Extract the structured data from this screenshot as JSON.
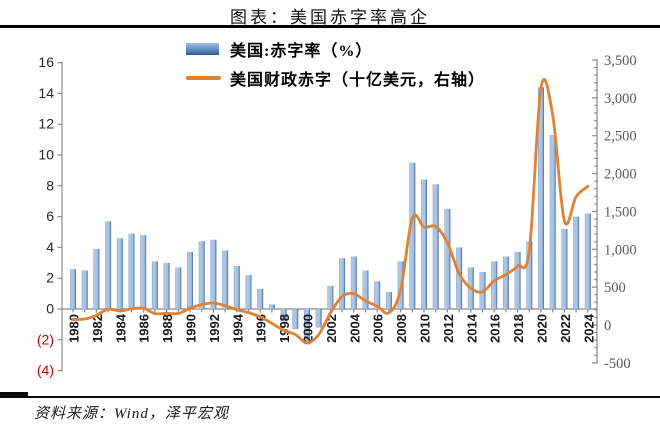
{
  "title": "图表：美国赤字率高企",
  "source": "资料来源：Wind，泽平宏观",
  "legend": {
    "bars": "美国:赤字率（%）",
    "line": "美国财政赤字（十亿美元，右轴）"
  },
  "colors": {
    "bar_edge_dark": "#3f689f",
    "bar_light": "#b2c8e4",
    "bar_mid": "#7d9fc7",
    "line": "#df8136",
    "negative_label": "#c00000",
    "axis": "#898989",
    "left_label": "#262626",
    "x_label": "#1a1a1a",
    "right_label": "#595959"
  },
  "chart_data": {
    "type": "bar",
    "x": [
      1980,
      1981,
      1982,
      1983,
      1984,
      1985,
      1986,
      1987,
      1988,
      1989,
      1990,
      1991,
      1992,
      1993,
      1994,
      1995,
      1996,
      1997,
      1998,
      1999,
      2000,
      2001,
      2002,
      2003,
      2004,
      2005,
      2006,
      2007,
      2008,
      2009,
      2010,
      2011,
      2012,
      2013,
      2014,
      2015,
      2016,
      2017,
      2018,
      2019,
      2020,
      2021,
      2022,
      2023,
      2024
    ],
    "series": [
      {
        "name": "美国:赤字率（%）",
        "type": "bar",
        "axis": "left",
        "values": [
          2.6,
          2.5,
          3.9,
          5.7,
          4.6,
          4.9,
          4.8,
          3.1,
          3.0,
          2.7,
          3.7,
          4.4,
          4.5,
          3.8,
          2.8,
          2.2,
          1.3,
          0.3,
          -0.8,
          -1.3,
          -2.3,
          -1.2,
          1.5,
          3.3,
          3.4,
          2.5,
          1.8,
          1.1,
          3.1,
          9.5,
          8.4,
          8.1,
          6.5,
          4.0,
          2.7,
          2.4,
          3.1,
          3.4,
          3.7,
          4.4,
          14.4,
          11.3,
          5.2,
          6.0,
          6.2
        ]
      },
      {
        "name": "美国财政赤字（十亿美元，右轴）",
        "type": "line",
        "axis": "right",
        "values": [
          74,
          79,
          128,
          208,
          185,
          212,
          221,
          150,
          155,
          152,
          221,
          269,
          290,
          255,
          203,
          164,
          107,
          22,
          -69,
          -126,
          -236,
          -128,
          158,
          378,
          413,
          318,
          248,
          161,
          459,
          1413,
          1294,
          1300,
          1087,
          680,
          485,
          438,
          585,
          665,
          779,
          984,
          3132,
          2772,
          1375,
          1695,
          1833
        ]
      }
    ],
    "left_axis": {
      "range": [
        -4,
        16
      ],
      "tick_values": [
        16,
        14,
        12,
        10,
        8,
        6,
        4,
        2,
        0,
        -2,
        -4
      ],
      "tick_labels": [
        "16",
        "14",
        "12",
        "10",
        "8",
        "6",
        "4",
        "2",
        "0",
        "(2)",
        "(4)"
      ]
    },
    "right_axis": {
      "range": [
        -500,
        3500
      ],
      "tick_values": [
        3500,
        3000,
        2500,
        2000,
        1500,
        1000,
        500,
        0,
        -500
      ],
      "tick_labels": [
        "3,500",
        "3,000",
        "2,500",
        "2,000",
        "1,500",
        "1,000",
        "500",
        "0",
        "-500"
      ],
      "minor_step": 100
    },
    "x_axis": {
      "label_every": 2
    },
    "grid": false,
    "legend_position": "top-center"
  }
}
